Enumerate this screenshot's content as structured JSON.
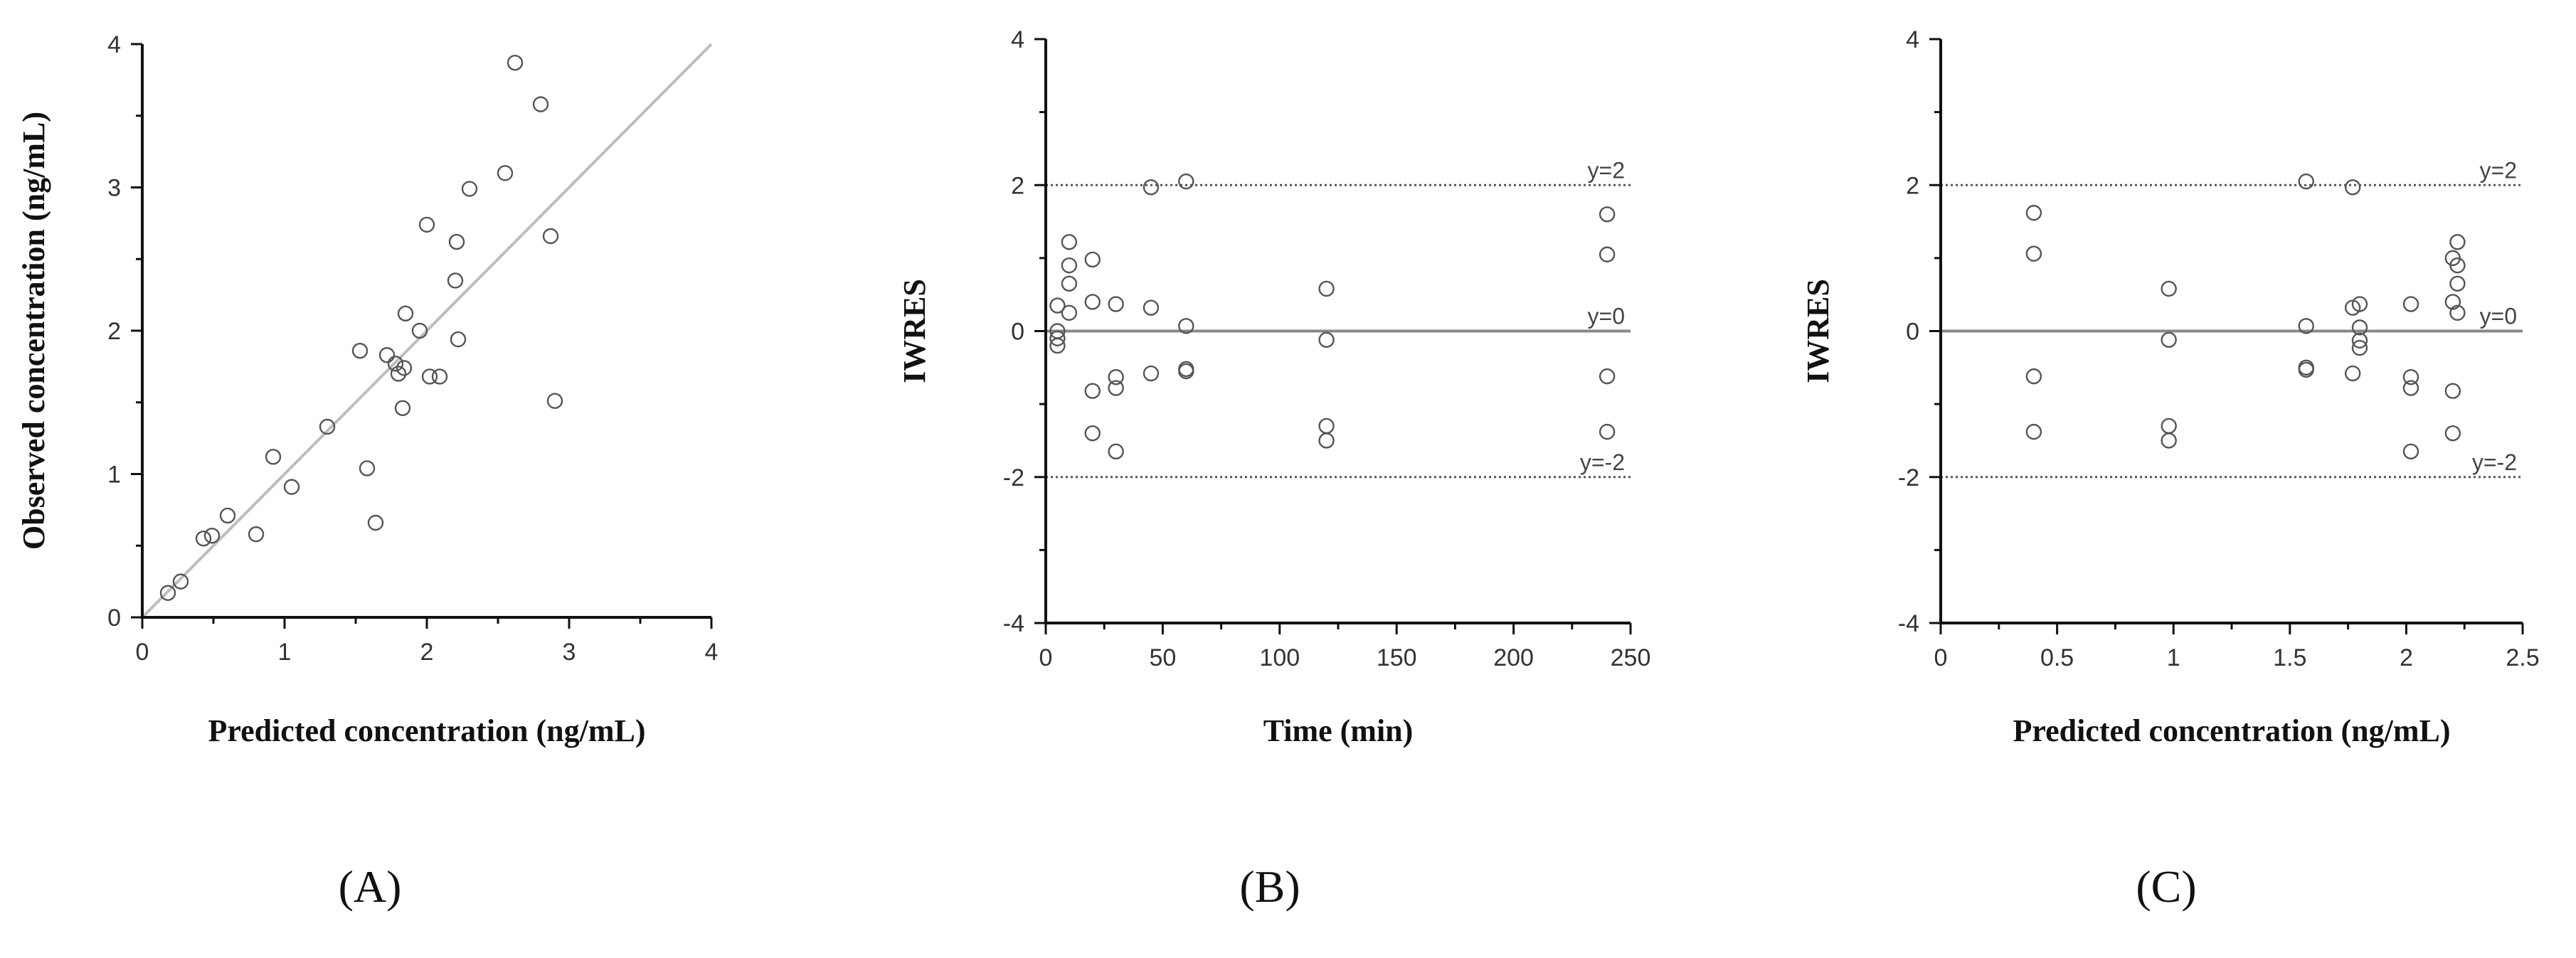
{
  "chart_data": [
    {
      "type": "scatter",
      "panel_label": "(A)",
      "xlabel": "Predicted concentration (ng/mL)",
      "ylabel": "Observed concentration (ng/mL)",
      "xlim": [
        0,
        4
      ],
      "ylim": [
        0,
        4
      ],
      "xticks": [
        0,
        1,
        2,
        3,
        4
      ],
      "yticks": [
        0,
        1,
        2,
        3,
        4
      ],
      "grid": false,
      "reference_lines": [
        {
          "kind": "identity",
          "from": [
            0,
            0
          ],
          "to": [
            4,
            4
          ],
          "label": ""
        }
      ],
      "points": [
        [
          0.18,
          0.17
        ],
        [
          0.27,
          0.25
        ],
        [
          0.43,
          0.55
        ],
        [
          0.49,
          0.57
        ],
        [
          0.6,
          0.71
        ],
        [
          0.8,
          0.58
        ],
        [
          0.92,
          1.12
        ],
        [
          1.05,
          0.91
        ],
        [
          1.3,
          1.33
        ],
        [
          1.53,
          1.86
        ],
        [
          1.58,
          1.04
        ],
        [
          1.64,
          0.66
        ],
        [
          1.72,
          1.83
        ],
        [
          1.78,
          1.77
        ],
        [
          1.8,
          1.7
        ],
        [
          1.83,
          1.46
        ],
        [
          1.84,
          1.74
        ],
        [
          1.85,
          2.12
        ],
        [
          1.95,
          2.0
        ],
        [
          2.0,
          2.74
        ],
        [
          2.02,
          1.68
        ],
        [
          2.09,
          1.68
        ],
        [
          2.2,
          2.35
        ],
        [
          2.21,
          2.62
        ],
        [
          2.22,
          1.94
        ],
        [
          2.3,
          2.99
        ],
        [
          2.55,
          3.1
        ],
        [
          2.62,
          3.87
        ],
        [
          2.8,
          3.58
        ],
        [
          2.87,
          2.66
        ],
        [
          2.9,
          1.51
        ]
      ]
    },
    {
      "type": "scatter",
      "panel_label": "(B)",
      "xlabel": "Time (min)",
      "ylabel": "IWRES",
      "xlim": [
        0,
        250
      ],
      "ylim": [
        -4,
        4
      ],
      "xticks": [
        0,
        50,
        100,
        150,
        200,
        250
      ],
      "yticks": [
        -4,
        -2,
        0,
        2,
        4
      ],
      "grid": false,
      "reference_lines": [
        {
          "kind": "horizontal",
          "y": 2,
          "style": "dotted",
          "label": "y=2"
        },
        {
          "kind": "horizontal",
          "y": 0,
          "style": "solid",
          "label": "y=0"
        },
        {
          "kind": "horizontal",
          "y": -2,
          "style": "dotted",
          "label": "y=-2"
        }
      ],
      "points": [
        [
          5,
          0.35
        ],
        [
          5,
          0.0
        ],
        [
          5,
          -0.1
        ],
        [
          5,
          -0.2
        ],
        [
          10,
          1.22
        ],
        [
          10,
          0.9
        ],
        [
          10,
          0.65
        ],
        [
          10,
          0.25
        ],
        [
          20,
          0.98
        ],
        [
          20,
          0.4
        ],
        [
          20,
          -0.82
        ],
        [
          20,
          -1.4
        ],
        [
          30,
          0.37
        ],
        [
          30,
          -0.63
        ],
        [
          30,
          -0.78
        ],
        [
          30,
          -1.65
        ],
        [
          45,
          1.97
        ],
        [
          45,
          0.32
        ],
        [
          45,
          -0.58
        ],
        [
          60,
          2.05
        ],
        [
          60,
          0.07
        ],
        [
          60,
          -0.52
        ],
        [
          60,
          -0.55
        ],
        [
          120,
          0.58
        ],
        [
          120,
          -0.12
        ],
        [
          120,
          -1.3
        ],
        [
          120,
          -1.5
        ],
        [
          240,
          1.6
        ],
        [
          240,
          1.05
        ],
        [
          240,
          -0.62
        ],
        [
          240,
          -1.38
        ]
      ]
    },
    {
      "type": "scatter",
      "panel_label": "(C)",
      "xlabel": "Predicted concentration (ng/mL)",
      "ylabel": "IWRES",
      "xlim": [
        0,
        2.5
      ],
      "ylim": [
        -4,
        4
      ],
      "xticks": [
        0,
        0.5,
        1,
        1.5,
        2,
        2.5
      ],
      "yticks": [
        -4,
        -2,
        0,
        2,
        4
      ],
      "grid": false,
      "reference_lines": [
        {
          "kind": "horizontal",
          "y": 2,
          "style": "dotted",
          "label": "y=2"
        },
        {
          "kind": "horizontal",
          "y": 0,
          "style": "solid",
          "label": "y=0"
        },
        {
          "kind": "horizontal",
          "y": -2,
          "style": "dotted",
          "label": "y=-2"
        }
      ],
      "points": [
        [
          0.4,
          1.62
        ],
        [
          0.4,
          1.06
        ],
        [
          0.4,
          -0.62
        ],
        [
          0.4,
          -1.38
        ],
        [
          0.98,
          0.58
        ],
        [
          0.98,
          -0.12
        ],
        [
          0.98,
          -1.3
        ],
        [
          0.98,
          -1.5
        ],
        [
          1.57,
          2.05
        ],
        [
          1.57,
          0.07
        ],
        [
          1.57,
          -0.5
        ],
        [
          1.57,
          -0.53
        ],
        [
          1.77,
          1.97
        ],
        [
          1.77,
          0.32
        ],
        [
          1.77,
          -0.58
        ],
        [
          1.8,
          0.37
        ],
        [
          1.8,
          0.05
        ],
        [
          1.8,
          -0.13
        ],
        [
          1.8,
          -0.23
        ],
        [
          2.02,
          0.37
        ],
        [
          2.02,
          -0.63
        ],
        [
          2.02,
          -0.78
        ],
        [
          2.02,
          -1.65
        ],
        [
          2.2,
          1.0
        ],
        [
          2.2,
          0.4
        ],
        [
          2.2,
          -0.82
        ],
        [
          2.2,
          -1.4
        ],
        [
          2.22,
          1.22
        ],
        [
          2.22,
          0.9
        ],
        [
          2.22,
          0.65
        ],
        [
          2.22,
          0.25
        ]
      ]
    }
  ]
}
